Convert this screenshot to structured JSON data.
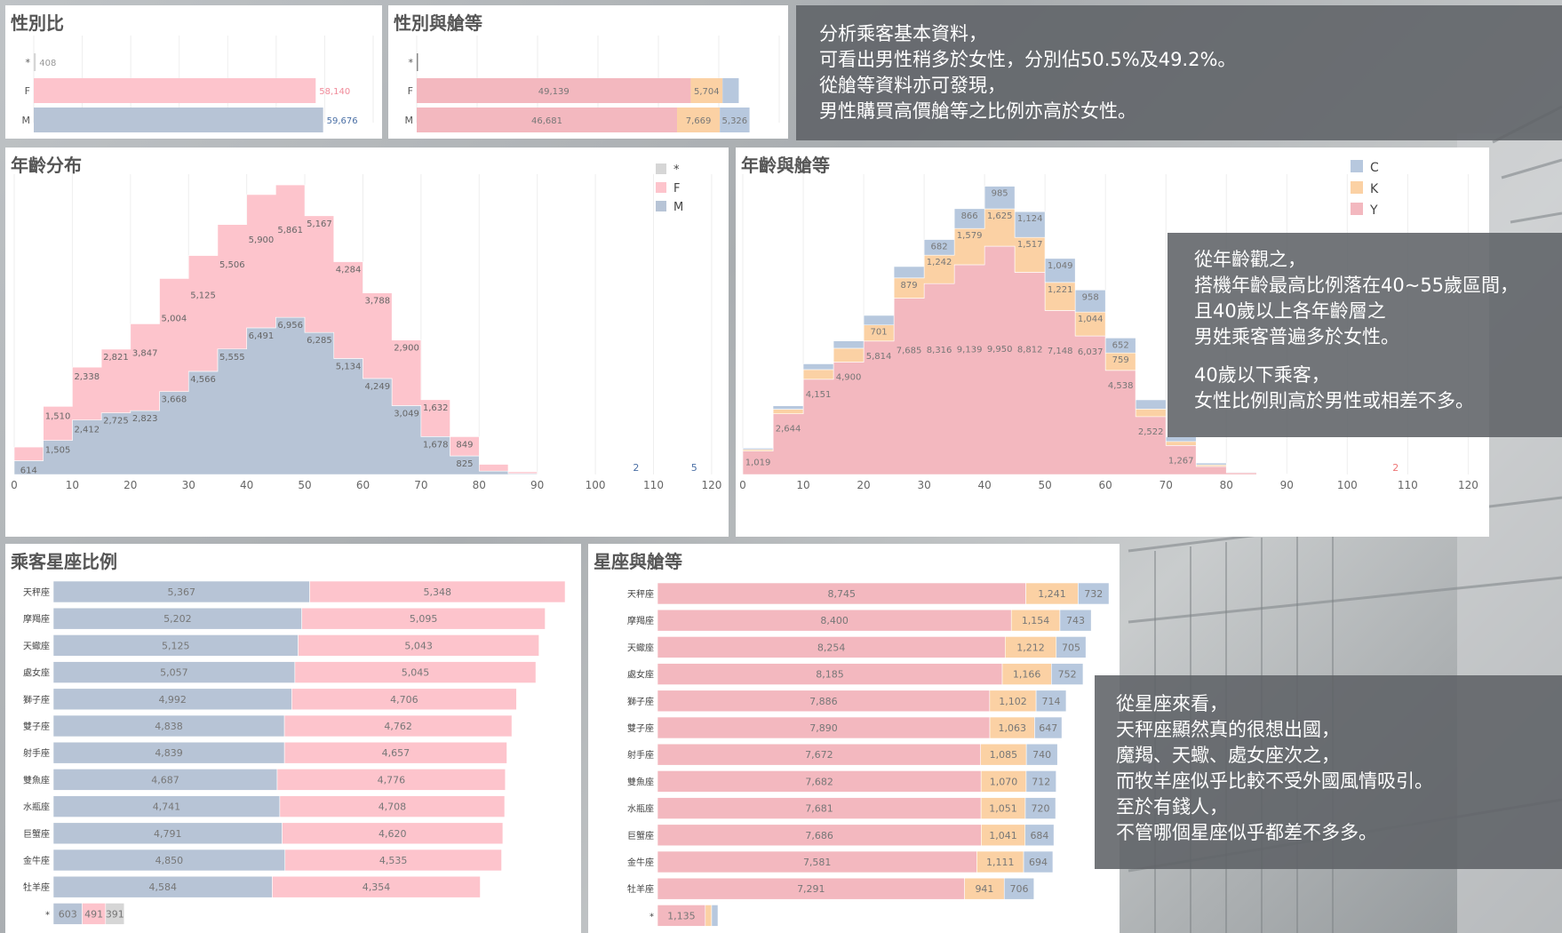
{
  "colors": {
    "M": "#b7c4d6",
    "F": "#fdc4cc",
    "star": "#d6d6d6",
    "C": "#b7c8de",
    "K": "#fbd1a4",
    "Y": "#f3b8bf",
    "Mtext": "#4a6fa5",
    "Ftext": "#f08b9a",
    "grid": "#eeeeee"
  },
  "panels": {
    "gender_title": "性別比",
    "gender_class_title": "性別與艙等",
    "age_title": "年齡分布",
    "age_class_title": "年齡與艙等",
    "zodiac_title": "乘客星座比例",
    "zodiac_class_title": "星座與艙等"
  },
  "notes": {
    "top": [
      "分析乘客基本資料，",
      "可看出男性稍多於女性，分別佔50.5%及49.2%。",
      "從艙等資料亦可發現，",
      "男性購買高價艙等之比例亦高於女性。"
    ],
    "age": [
      "從年齡觀之，",
      "搭機年齡最高比例落在40~55歲區間，",
      "且40歲以上各年齡層之",
      "男姓乘客普遍多於女性。",
      "",
      "40歲以下乘客，",
      "女性比例則高於男性或相差不多。"
    ],
    "zodiac": [
      "從星座來看，",
      "天秤座顯然真的很想出國，",
      "魔羯、天蠍、處女座次之，",
      "而牧羊座似乎比較不受外國風情吸引。",
      "至於有錢人，",
      "不管哪個星座似乎都差不多多。"
    ]
  },
  "chart_data": [
    {
      "id": "gender",
      "type": "bar",
      "orientation": "horizontal",
      "categories": [
        "*",
        "F",
        "M"
      ],
      "values": [
        408,
        58140,
        59676
      ],
      "xlim": [
        0,
        70000
      ]
    },
    {
      "id": "gender_class",
      "type": "bar",
      "orientation": "horizontal",
      "stacked": true,
      "categories": [
        "*",
        "F",
        "M"
      ],
      "series": [
        {
          "name": "Y",
          "values": [
            0,
            49139,
            46681
          ],
          "labels": [
            "",
            "49,139",
            "46,681"
          ]
        },
        {
          "name": "K",
          "values": [
            0,
            5704,
            7669
          ],
          "labels": [
            "",
            "5,704",
            "7,669"
          ]
        },
        {
          "name": "C",
          "values": [
            408,
            2900,
            5326
          ],
          "labels": [
            "",
            "",
            "5,326"
          ]
        }
      ],
      "xlim": [
        0,
        65000
      ]
    },
    {
      "id": "age",
      "type": "area",
      "stacked": true,
      "x_ticks": [
        0,
        10,
        20,
        30,
        40,
        50,
        60,
        70,
        80,
        90,
        100,
        110,
        120
      ],
      "xlim": [
        0,
        122
      ],
      "bin": 5,
      "bins": [
        0,
        5,
        10,
        15,
        20,
        25,
        30,
        35,
        40,
        45,
        50,
        55,
        60,
        65,
        70,
        75,
        80,
        85,
        90
      ],
      "legend": [
        "*",
        "F",
        "M"
      ],
      "series": [
        {
          "name": "M",
          "values": [
            614,
            1505,
            2412,
            2725,
            2823,
            3668,
            4566,
            5555,
            6491,
            6956,
            6285,
            5134,
            4249,
            3049,
            1678,
            825,
            150,
            40,
            0
          ]
        },
        {
          "name": "F",
          "values": [
            600,
            1510,
            2338,
            2821,
            3847,
            5004,
            5125,
            5506,
            5900,
            5861,
            5167,
            4284,
            3788,
            2900,
            1632,
            849,
            300,
            80,
            0
          ]
        }
      ],
      "m_labels": [
        "614",
        "1,505",
        "2,412",
        "2,725",
        "2,823",
        "3,668",
        "4,566",
        "5,555",
        "6,491",
        "6,956",
        "6,285",
        "5,134",
        "4,249",
        "3,049",
        "1,678",
        "825",
        "",
        "",
        ""
      ],
      "f_labels": [
        "",
        "1,510",
        "2,338",
        "2,821",
        "3,847",
        "5,004",
        "5,125",
        "5,506",
        "5,900",
        "5,861",
        "5,167",
        "4,284",
        "3,788",
        "2,900",
        "1,632",
        "849",
        "",
        "",
        ""
      ],
      "outliers": [
        {
          "x": 107,
          "label": "2"
        },
        {
          "x": 117,
          "label": "5"
        }
      ]
    },
    {
      "id": "age_class",
      "type": "area",
      "stacked": true,
      "x_ticks": [
        0,
        10,
        20,
        30,
        40,
        50,
        60,
        70,
        80,
        90,
        100,
        110,
        120
      ],
      "xlim": [
        0,
        122
      ],
      "bin": 5,
      "bins": [
        0,
        5,
        10,
        15,
        20,
        25,
        30,
        35,
        40,
        45,
        50,
        55,
        60,
        65,
        70,
        75,
        80,
        85,
        90
      ],
      "legend": [
        "C",
        "K",
        "Y"
      ],
      "series": [
        {
          "name": "Y",
          "values": [
            1019,
            2644,
            4151,
            4900,
            5814,
            7685,
            8316,
            9139,
            9950,
            8812,
            7148,
            6037,
            4538,
            2522,
            1267,
            350,
            80,
            20,
            0
          ]
        },
        {
          "name": "K",
          "values": [
            70,
            200,
            420,
            600,
            701,
            879,
            1242,
            1579,
            1625,
            1517,
            1221,
            1044,
            759,
            330,
            170,
            70,
            20,
            0,
            0
          ]
        },
        {
          "name": "C",
          "values": [
            60,
            150,
            250,
            320,
            420,
            500,
            682,
            866,
            985,
            1124,
            1049,
            958,
            652,
            400,
            200,
            80,
            30,
            0,
            0
          ]
        }
      ],
      "y_labels": [
        "1,019",
        "2,644",
        "4,151",
        "4,900",
        "5,814",
        "7,685",
        "8,316",
        "9,139",
        "9,950",
        "8,812",
        "7,148",
        "6,037",
        "4,538",
        "2,522",
        "1,267",
        "",
        "",
        "",
        ""
      ],
      "k_labels": [
        "",
        "",
        "",
        "",
        "701",
        "879",
        "1,242",
        "1,579",
        "1,625",
        "1,517",
        "1,221",
        "1,044",
        "759",
        "",
        "",
        "",
        "",
        "",
        ""
      ],
      "c_labels": [
        "",
        "",
        "",
        "",
        "",
        "",
        "682",
        "866",
        "985",
        "1,124",
        "1,049",
        "958",
        "652",
        "",
        "",
        "",
        "",
        "",
        ""
      ],
      "outliers": [
        {
          "x": 108,
          "label": "2"
        }
      ]
    },
    {
      "id": "zodiac",
      "type": "bar",
      "orientation": "horizontal",
      "stacked": true,
      "categories": [
        "天秤座",
        "摩羯座",
        "天蠍座",
        "處女座",
        "獅子座",
        "雙子座",
        "射手座",
        "雙魚座",
        "水瓶座",
        "巨蟹座",
        "金牛座",
        "牡羊座",
        "*"
      ],
      "series": [
        {
          "name": "M",
          "values": [
            5367,
            5202,
            5125,
            5057,
            4992,
            4838,
            4839,
            4687,
            4741,
            4791,
            4850,
            4584,
            603
          ],
          "labels": [
            "5,367",
            "5,202",
            "5,125",
            "5,057",
            "4,992",
            "4,838",
            "4,839",
            "4,687",
            "4,741",
            "4,791",
            "4,850",
            "4,584",
            "603"
          ]
        },
        {
          "name": "F",
          "values": [
            5348,
            5095,
            5043,
            5045,
            4706,
            4762,
            4657,
            4776,
            4708,
            4620,
            4535,
            4354,
            491
          ],
          "labels": [
            "5,348",
            "5,095",
            "5,043",
            "5,045",
            "4,706",
            "4,762",
            "4,657",
            "4,776",
            "4,708",
            "4,620",
            "4,535",
            "4,354",
            "491"
          ]
        },
        {
          "name": "*",
          "values": [
            0,
            0,
            0,
            0,
            0,
            0,
            0,
            0,
            0,
            0,
            0,
            0,
            391
          ],
          "labels": [
            "",
            "",
            "",
            "",
            "",
            "",
            "",
            "",
            "",
            "",
            "",
            "",
            "391"
          ]
        }
      ],
      "xlim": [
        0,
        10900
      ]
    },
    {
      "id": "zodiac_class",
      "type": "bar",
      "orientation": "horizontal",
      "stacked": true,
      "categories": [
        "天秤座",
        "摩羯座",
        "天蠍座",
        "處女座",
        "獅子座",
        "雙子座",
        "射手座",
        "雙魚座",
        "水瓶座",
        "巨蟹座",
        "金牛座",
        "牡羊座",
        "*"
      ],
      "series": [
        {
          "name": "Y",
          "values": [
            8745,
            8400,
            8254,
            8185,
            7886,
            7890,
            7672,
            7682,
            7681,
            7686,
            7581,
            7291,
            1135
          ],
          "labels": [
            "8,745",
            "8,400",
            "8,254",
            "8,185",
            "7,886",
            "7,890",
            "7,672",
            "7,682",
            "7,681",
            "7,686",
            "7,581",
            "7,291",
            "1,135"
          ]
        },
        {
          "name": "K",
          "values": [
            1241,
            1154,
            1212,
            1166,
            1102,
            1063,
            1085,
            1070,
            1051,
            1041,
            1111,
            941,
            150
          ],
          "labels": [
            "1,241",
            "1,154",
            "1,212",
            "1,166",
            "1,102",
            "1,063",
            "1,085",
            "1,070",
            "1,051",
            "1,041",
            "1,111",
            "941",
            ""
          ]
        },
        {
          "name": "C",
          "values": [
            732,
            743,
            705,
            752,
            714,
            647,
            740,
            712,
            720,
            684,
            694,
            706,
            150
          ],
          "labels": [
            "732",
            "743",
            "705",
            "752",
            "714",
            "647",
            "740",
            "712",
            "720",
            "684",
            "694",
            "706",
            ""
          ]
        }
      ],
      "xlim": [
        0,
        10800
      ]
    }
  ]
}
